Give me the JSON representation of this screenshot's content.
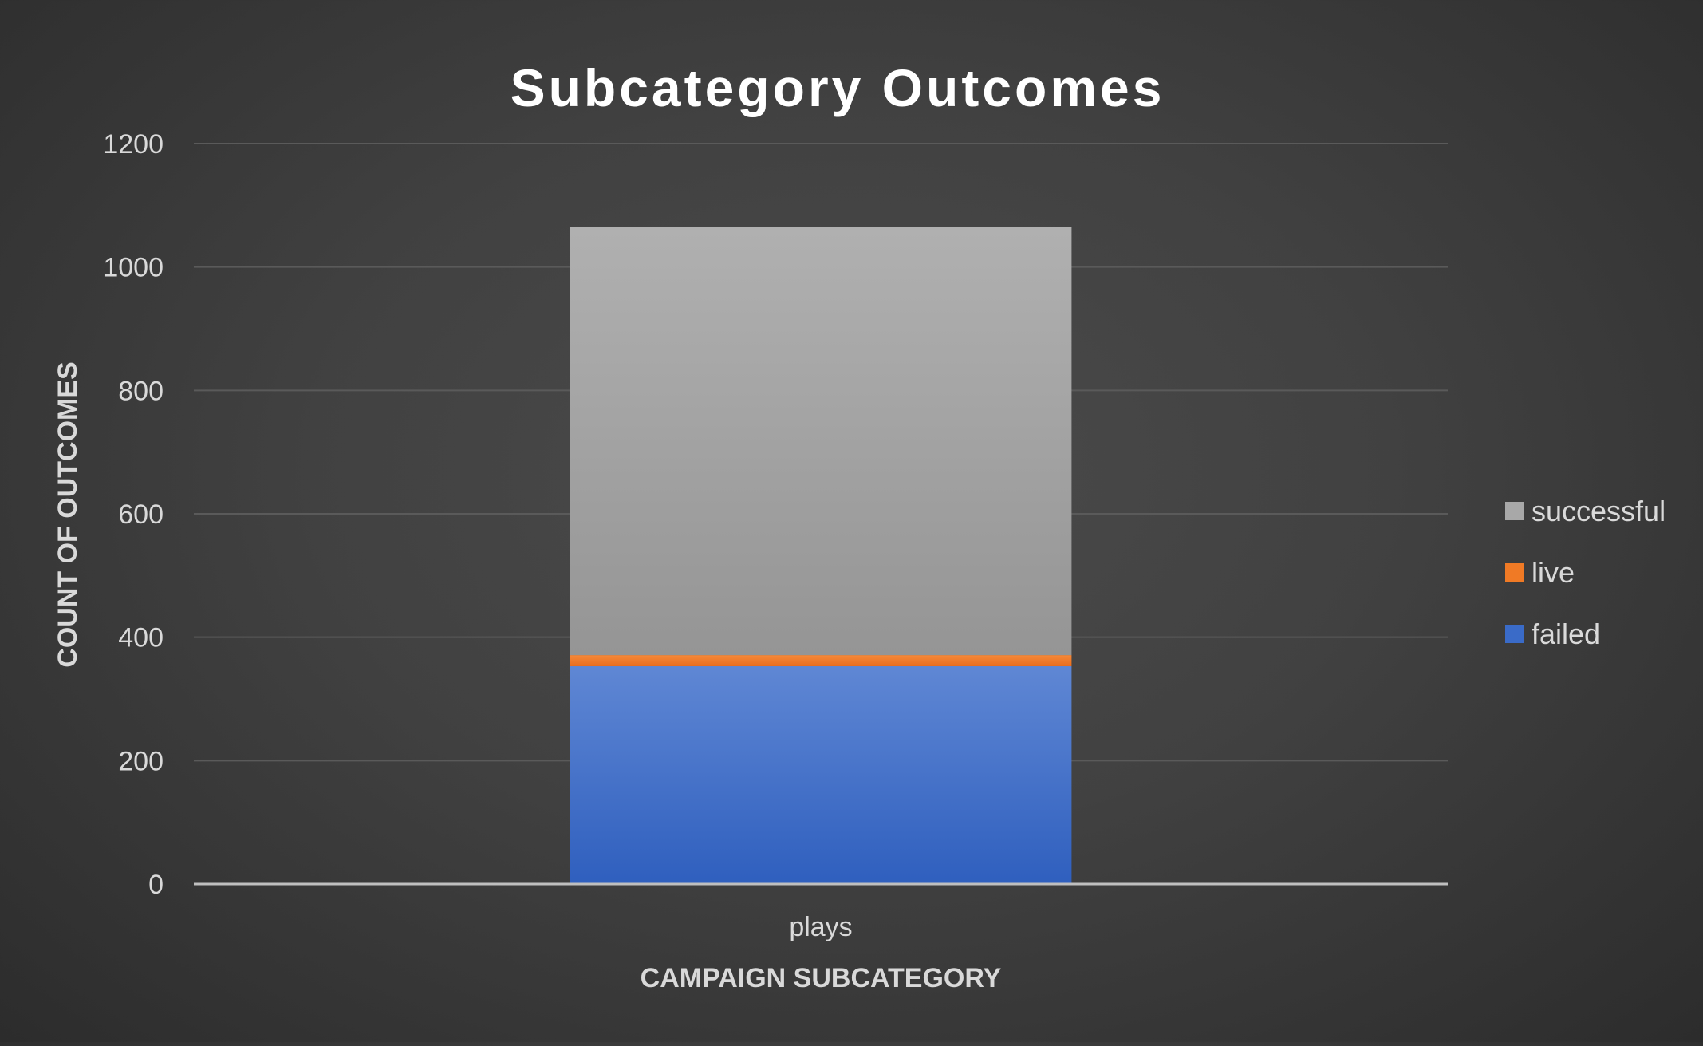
{
  "chart_data": {
    "type": "bar",
    "stacked": true,
    "title": "Subcategory Outcomes",
    "xlabel": "CAMPAIGN SUBCATEGORY",
    "ylabel": "COUNT OF OUTCOMES",
    "categories": [
      "plays"
    ],
    "series": [
      {
        "name": "failed",
        "values": [
          353
        ],
        "color": "#3a6bc8"
      },
      {
        "name": "live",
        "values": [
          18
        ],
        "color": "#f07a25"
      },
      {
        "name": "successful",
        "values": [
          694
        ],
        "color": "#a8a8a8"
      }
    ],
    "ylim": [
      0,
      1200
    ],
    "yticks": [
      0,
      200,
      400,
      600,
      800,
      1000,
      1200
    ],
    "grid": true,
    "legend_position": "right"
  }
}
